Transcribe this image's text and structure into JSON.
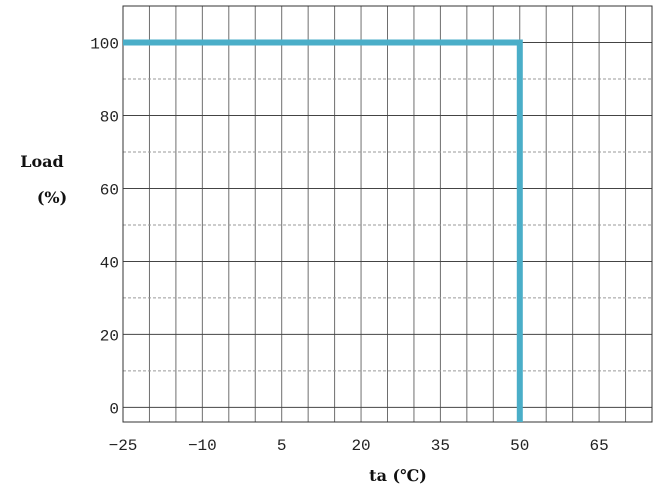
{
  "chart_data": {
    "type": "line",
    "title": "",
    "xlabel": "ta (℃)",
    "ylabel_line1": "Load",
    "ylabel_line2": "(%)",
    "xlim": [
      -25,
      75
    ],
    "ylim": [
      -4,
      110
    ],
    "x_ticks": [
      -25,
      -10,
      5,
      20,
      35,
      50,
      65
    ],
    "y_ticks": [
      0,
      20,
      40,
      60,
      80,
      100
    ],
    "x_minor_step": 5,
    "y_minor_step": 10,
    "grid": true,
    "legend": "none",
    "series": [
      {
        "color": "#4aaec8",
        "x": [
          -25,
          50,
          50
        ],
        "y": [
          100,
          100,
          -4
        ]
      }
    ]
  }
}
